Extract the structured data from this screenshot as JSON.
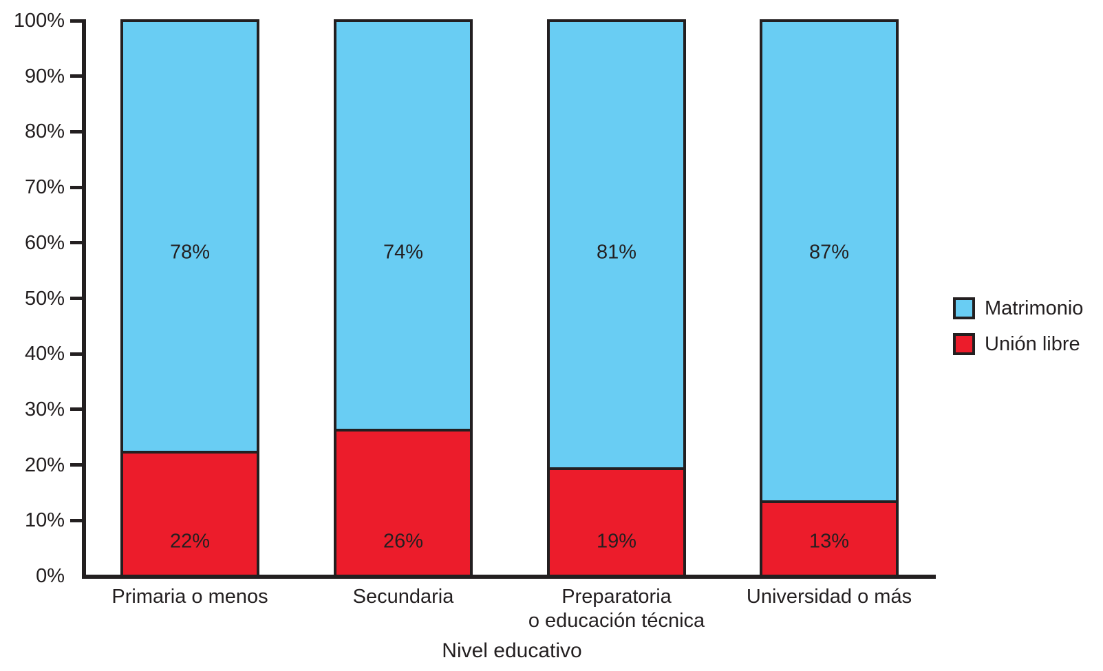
{
  "chart_data": {
    "type": "bar",
    "variant": "100-percent-stacked-column",
    "title": "",
    "xlabel": "Nivel educativo",
    "ylabel": "",
    "ylim": [
      0,
      100
    ],
    "grid": false,
    "legend_position": "right-middle",
    "yticks": [
      "0%",
      "10%",
      "20%",
      "30%",
      "40%",
      "50%",
      "60%",
      "70%",
      "80%",
      "90%",
      "100%"
    ],
    "categories": [
      {
        "lines": [
          "Primaria o menos"
        ]
      },
      {
        "lines": [
          "Secundaria"
        ]
      },
      {
        "lines": [
          "Preparatoria",
          "o educación técnica"
        ]
      },
      {
        "lines": [
          "Universidad o más"
        ]
      }
    ],
    "series": [
      {
        "name": "Matrimonio",
        "color": "#69CDF3",
        "values": [
          78,
          74,
          81,
          87
        ],
        "labels": [
          "78%",
          "74%",
          "81%",
          "87%"
        ]
      },
      {
        "name": "Unión libre",
        "color": "#EC1C2B",
        "values": [
          22,
          26,
          19,
          13
        ],
        "labels": [
          "22%",
          "26%",
          "19%",
          "13%"
        ]
      }
    ],
    "colors": {
      "outline": "#231F20",
      "text": "#231F20",
      "background": "#FFFFFF"
    }
  }
}
